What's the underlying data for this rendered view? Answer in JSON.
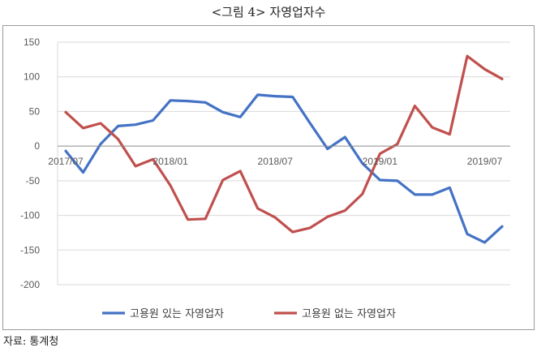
{
  "figure_title": "<그림 4> 자영업자수",
  "source_note": "자료: 통계청",
  "chart_data": {
    "type": "line",
    "title": "",
    "xlabel": "",
    "ylabel": "",
    "ylim": [
      -200,
      150
    ],
    "y_ticks": [
      150,
      100,
      50,
      0,
      -50,
      -100,
      -150,
      -200
    ],
    "grid": true,
    "legend_position": "bottom",
    "x": [
      "2017/07",
      "2017/08",
      "2017/09",
      "2017/10",
      "2017/11",
      "2017/12",
      "2018/01",
      "2018/02",
      "2018/03",
      "2018/04",
      "2018/05",
      "2018/06",
      "2018/07",
      "2018/08",
      "2018/09",
      "2018/10",
      "2018/11",
      "2018/12",
      "2019/01",
      "2019/02",
      "2019/03",
      "2019/04",
      "2019/05",
      "2019/06",
      "2019/07",
      "2019/08"
    ],
    "x_tick_labels": [
      "2017/07",
      "2018/01",
      "2018/07",
      "2019/01",
      "2019/07"
    ],
    "series": [
      {
        "name": "고용원 있는 자영업자",
        "color": "#4472C4",
        "values": [
          -7,
          -38,
          3,
          29,
          31,
          37,
          66,
          65,
          63,
          49,
          42,
          74,
          72,
          71,
          33,
          -4,
          13,
          -25,
          -49,
          -50,
          -70,
          -70,
          -60,
          -127,
          -139,
          -116
        ]
      },
      {
        "name": "고용원 없는 자영업자",
        "color": "#C0504D",
        "values": [
          49,
          26,
          33,
          10,
          -29,
          -19,
          -57,
          -106,
          -105,
          -49,
          -36,
          -90,
          -103,
          -124,
          -118,
          -102,
          -93,
          -69,
          -11,
          3,
          58,
          27,
          17,
          130,
          111,
          97
        ]
      }
    ]
  }
}
